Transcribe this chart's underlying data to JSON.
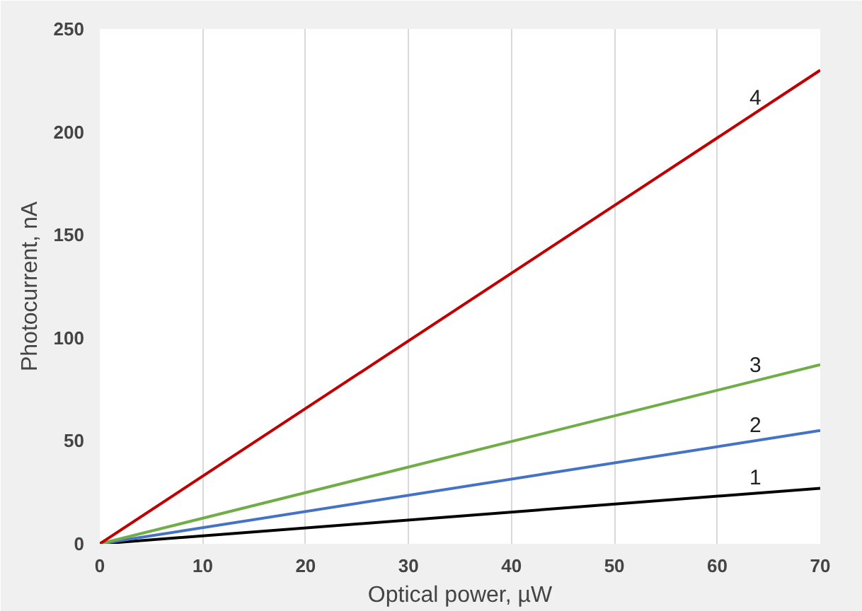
{
  "chart_data": {
    "type": "line",
    "xlabel": "Optical power, µW",
    "ylabel": "Photocurrent, nA",
    "x": [
      0,
      70
    ],
    "series": [
      {
        "name": "1",
        "color": "#000000",
        "values": [
          0,
          27
        ]
      },
      {
        "name": "2",
        "color": "#4472c4",
        "values": [
          0,
          55
        ]
      },
      {
        "name": "3",
        "color": "#70ad47",
        "values": [
          0,
          87
        ]
      },
      {
        "name": "4",
        "color": "#c00000",
        "values": [
          0,
          230
        ]
      }
    ],
    "xlim": [
      0,
      70
    ],
    "ylim": [
      0,
      250
    ],
    "xticks": [
      0,
      10,
      20,
      30,
      40,
      50,
      60,
      70
    ],
    "yticks": [
      0,
      50,
      100,
      150,
      200,
      250
    ],
    "grid": "x",
    "marker": "none",
    "line_style": "solid"
  }
}
